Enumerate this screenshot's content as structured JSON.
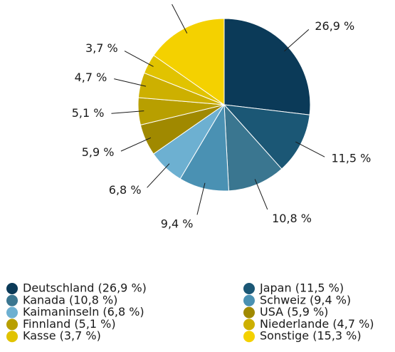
{
  "chart_data": {
    "type": "pie",
    "categories": [
      "Deutschland (26,9 %)",
      "Japan (11,5 %)",
      "Kanada (10,8 %)",
      "Schweiz (9,4 %)",
      "Kaimaninseln (6,8 %)",
      "USA (5,9 %)",
      "Finnland (5,1 %)",
      "Niederlande (4,7 %)",
      "Kasse (3,7 %)",
      "Sonstige (15,3 %)"
    ],
    "values": [
      26.9,
      11.5,
      10.8,
      9.4,
      6.8,
      5.9,
      5.1,
      4.7,
      3.7,
      15.3
    ],
    "value_labels": [
      "26,9 %",
      "11,5 %",
      "10,8 %",
      "9,4 %",
      "6,8 %",
      "5,9 %",
      "5,1 %",
      "4,7 %",
      "3,7 %",
      "15,3 %"
    ],
    "colors": [
      "#0b3a58",
      "#1b5775",
      "#3a7690",
      "#4a91b3",
      "#6db0d1",
      "#a08900",
      "#b89f00",
      "#cdb000",
      "#e1c300",
      "#f4d100"
    ]
  }
}
